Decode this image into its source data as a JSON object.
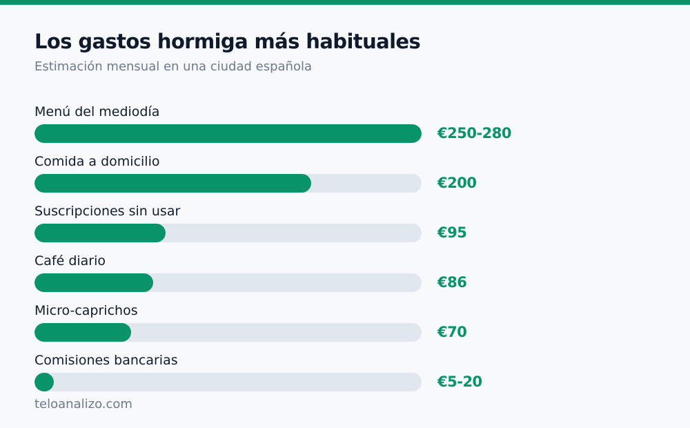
{
  "chart_data": {
    "type": "bar",
    "orientation": "horizontal",
    "title": "Los gastos hormiga más habituales",
    "subtitle": "Estimación mensual en una ciudad española",
    "categories": [
      "Menú del mediodía",
      "Comida a domicilio",
      "Suscripciones sin usar",
      "Café diario",
      "Micro-caprichos",
      "Comisiones bancarias"
    ],
    "values": [
      280,
      200,
      95,
      86,
      70,
      14
    ],
    "value_labels": [
      "€250-280",
      "€200",
      "€95",
      "€86",
      "€70",
      "€5-20"
    ],
    "xlim": [
      0,
      280
    ],
    "grid": false,
    "legend": "none",
    "colors": {
      "accent": "#089369",
      "track": "#e1e7ee",
      "title": "#0f1b2d",
      "muted": "#6d7a8c"
    }
  },
  "footer": {
    "source": "teloanalizo.com"
  }
}
